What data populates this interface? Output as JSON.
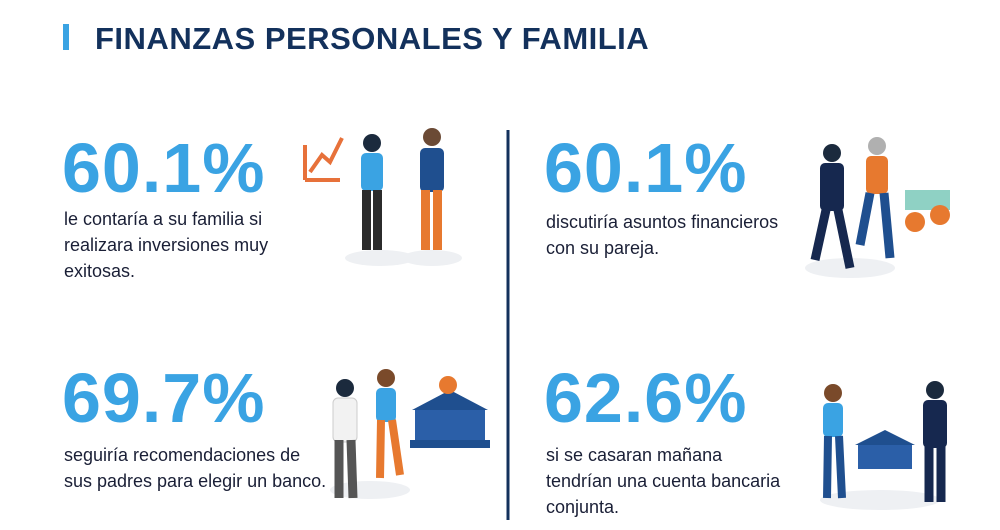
{
  "header": {
    "title": "FINANZAS PERSONALES Y FAMILIA"
  },
  "stats": [
    {
      "value": "60.1%",
      "lines": [
        "le contaría a su familia si",
        "realizara inversiones muy",
        "exitosas."
      ]
    },
    {
      "value": "60.1%",
      "lines": [
        "discutiría asuntos financieros",
        "con su pareja."
      ]
    },
    {
      "value": "69.7%",
      "lines": [
        "seguiría recomendaciones de",
        "sus padres para elegir un banco."
      ]
    },
    {
      "value": "62.6%",
      "lines": [
        "si se casaran mañana",
        "tendrían una cuenta bancaria",
        "conjunta."
      ]
    }
  ]
}
